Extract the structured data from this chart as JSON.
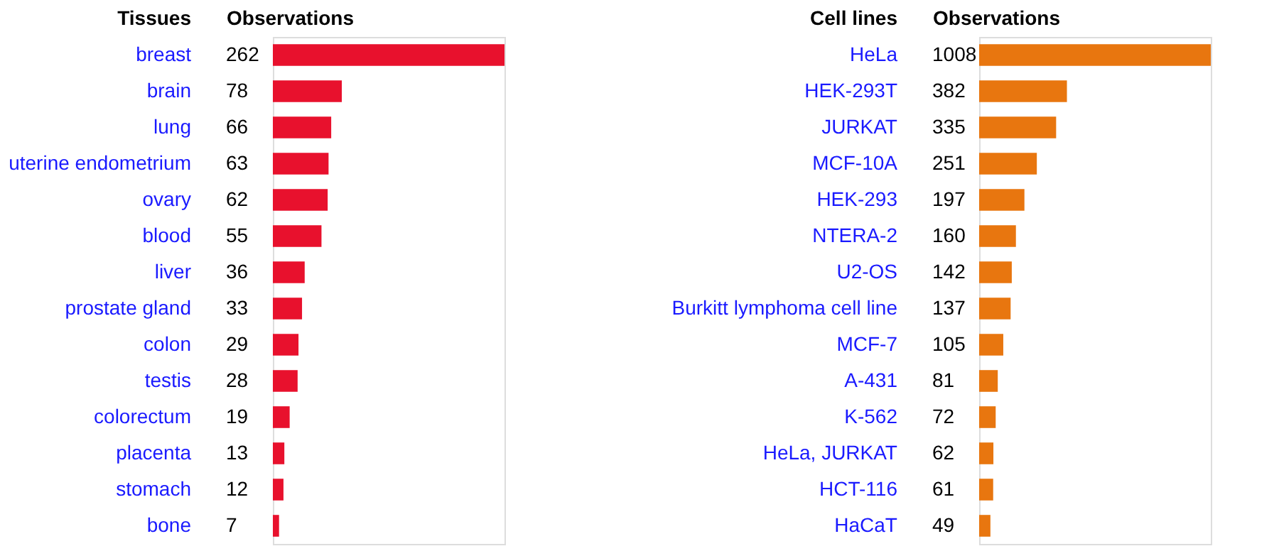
{
  "chart_data": [
    {
      "type": "bar",
      "orientation": "horizontal",
      "ylabel": "Tissues",
      "xlabel": "Observations",
      "categories": [
        "breast",
        "brain",
        "lung",
        "uterine endometrium",
        "ovary",
        "blood",
        "liver",
        "prostate gland",
        "colon",
        "testis",
        "colorectum",
        "placenta",
        "stomach",
        "bone"
      ],
      "values": [
        262,
        78,
        66,
        63,
        62,
        55,
        36,
        33,
        29,
        28,
        19,
        13,
        12,
        7
      ],
      "color": "#e8112d",
      "data_labels": true
    },
    {
      "type": "bar",
      "orientation": "horizontal",
      "ylabel": "Cell lines",
      "xlabel": "Observations",
      "categories": [
        "HeLa",
        "HEK-293T",
        "JURKAT",
        "MCF-10A",
        "HEK-293",
        "NTERA-2",
        "U2-OS",
        "Burkitt lymphoma cell line",
        "MCF-7",
        "A-431",
        "K-562",
        "HeLa, JURKAT",
        "HCT-116",
        "HaCaT"
      ],
      "values": [
        1008,
        382,
        335,
        251,
        197,
        160,
        142,
        137,
        105,
        81,
        72,
        62,
        61,
        49
      ],
      "color": "#e8760f",
      "data_labels": true
    }
  ]
}
